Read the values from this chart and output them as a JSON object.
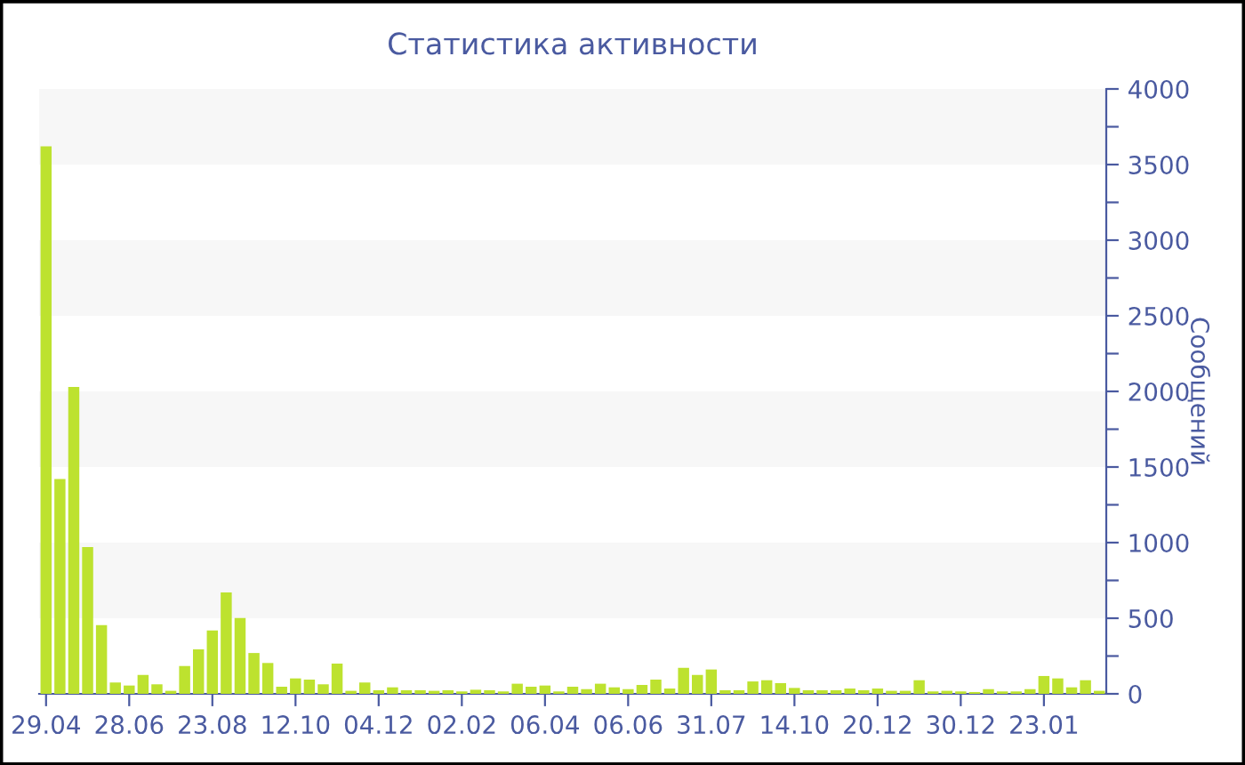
{
  "chart_data": {
    "type": "bar",
    "title": "Статистика активности",
    "ylabel": "Сообщений",
    "categories": [
      "29.04",
      null,
      null,
      null,
      null,
      null,
      "28.06",
      null,
      null,
      null,
      null,
      null,
      "23.08",
      null,
      null,
      null,
      null,
      null,
      "12.10",
      null,
      null,
      null,
      null,
      null,
      "04.12",
      null,
      null,
      null,
      null,
      null,
      "02.02",
      null,
      null,
      null,
      null,
      null,
      "06.04",
      null,
      null,
      null,
      null,
      null,
      "06.06",
      null,
      null,
      null,
      null,
      null,
      "31.07",
      null,
      null,
      null,
      null,
      null,
      "14.10",
      null,
      null,
      null,
      null,
      null,
      "20.12",
      null,
      null,
      null,
      null,
      null,
      "30.12",
      null,
      null,
      null,
      null,
      null,
      "23.01",
      null,
      null,
      null,
      null
    ],
    "values": [
      3620,
      1420,
      2030,
      970,
      455,
      75,
      55,
      125,
      63,
      20,
      184,
      294,
      419,
      670,
      502,
      270,
      204,
      47,
      102,
      94,
      63,
      200,
      20,
      75,
      24,
      43,
      24,
      24,
      20,
      24,
      16,
      27,
      24,
      16,
      67,
      47,
      55,
      16,
      47,
      31,
      67,
      43,
      31,
      59,
      94,
      35,
      172,
      125,
      161,
      24,
      24,
      82,
      90,
      71,
      39,
      24,
      24,
      24,
      35,
      24,
      35,
      20,
      20,
      90,
      16,
      20,
      16,
      12,
      31,
      16,
      16,
      31,
      118,
      102,
      43,
      90,
      20
    ],
    "color": "#bde22f",
    "ylim": [
      0,
      4000
    ],
    "yticks": [
      0,
      {
        "value": 250,
        "label": null
      },
      500,
      {
        "value": 750,
        "label": null
      },
      1000,
      {
        "value": 1250,
        "label": null
      },
      1500,
      {
        "value": 1750,
        "label": null
      },
      2000,
      {
        "value": 2250,
        "label": null
      },
      2500,
      {
        "value": 2750,
        "label": null
      },
      3000,
      {
        "value": 3250,
        "label": null
      },
      3500,
      {
        "value": 3750,
        "label": null
      },
      4000
    ],
    "bands": [
      {
        "axis": "y",
        "from": 500,
        "to": 1000,
        "color": "#f7f7f7"
      },
      {
        "axis": "y",
        "from": 1500,
        "to": 2000,
        "color": "#f7f7f7"
      },
      {
        "axis": "y",
        "from": 2500,
        "to": 3000,
        "color": "#f7f7f7"
      },
      {
        "axis": "y",
        "from": 3500,
        "to": 4000,
        "color": "#f7f7f7"
      }
    ],
    "grid": false,
    "legend": false
  }
}
